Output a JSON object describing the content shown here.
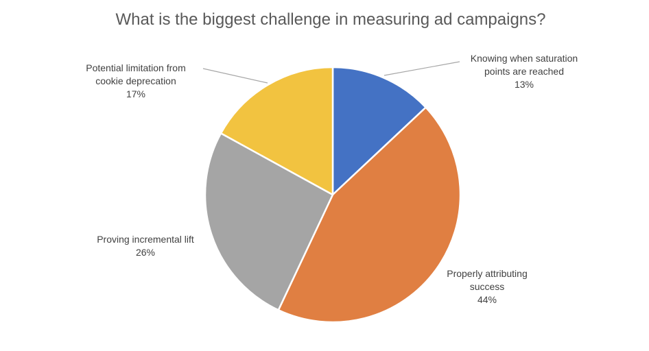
{
  "chart_data": {
    "type": "pie",
    "title": "What is the biggest challenge in measuring ad campaigns?",
    "start_angle_deg": 0,
    "direction": "clockwise",
    "slices": [
      {
        "label": "Knowing when saturation points are reached",
        "label_lines": [
          "Knowing when saturation",
          "points are reached"
        ],
        "value": 13,
        "value_label": "13%",
        "color": "#4472C4"
      },
      {
        "label": "Properly attributing success",
        "label_lines": [
          "Properly attributing",
          "success"
        ],
        "value": 44,
        "value_label": "44%",
        "color": "#E07F42"
      },
      {
        "label": "Proving incremental lift",
        "label_lines": [
          "Proving incremental lift"
        ],
        "value": 26,
        "value_label": "26%",
        "color": "#A5A5A5"
      },
      {
        "label": "Potential limitation from cookie deprecation",
        "label_lines": [
          "Potential limitation from",
          "cookie deprecation"
        ],
        "value": 17,
        "value_label": "17%",
        "color": "#F2C340"
      }
    ]
  }
}
